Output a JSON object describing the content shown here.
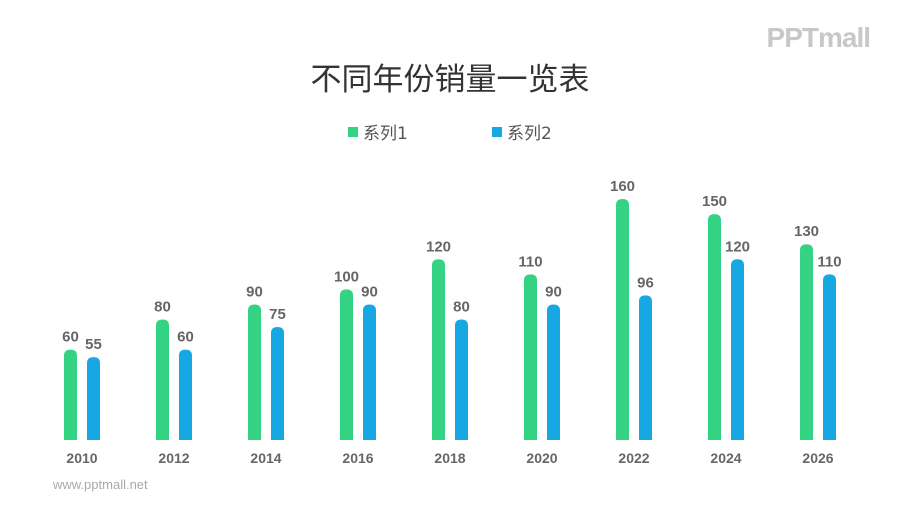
{
  "logo": "PPTmall",
  "website": "www.pptmall.net",
  "chart_data": {
    "type": "bar",
    "title": "不同年份销量一览表",
    "categories": [
      "2010",
      "2012",
      "2014",
      "2016",
      "2018",
      "2020",
      "2022",
      "2024",
      "2026"
    ],
    "series": [
      {
        "name": "系列1",
        "color": "#34d384",
        "values": [
          60,
          80,
          90,
          100,
          120,
          110,
          160,
          150,
          130
        ]
      },
      {
        "name": "系列2",
        "color": "#17a8e3",
        "values": [
          55,
          60,
          75,
          90,
          80,
          90,
          96,
          120,
          110
        ]
      }
    ],
    "ylim": [
      0,
      160
    ],
    "grid": false,
    "legend_position": "top"
  }
}
